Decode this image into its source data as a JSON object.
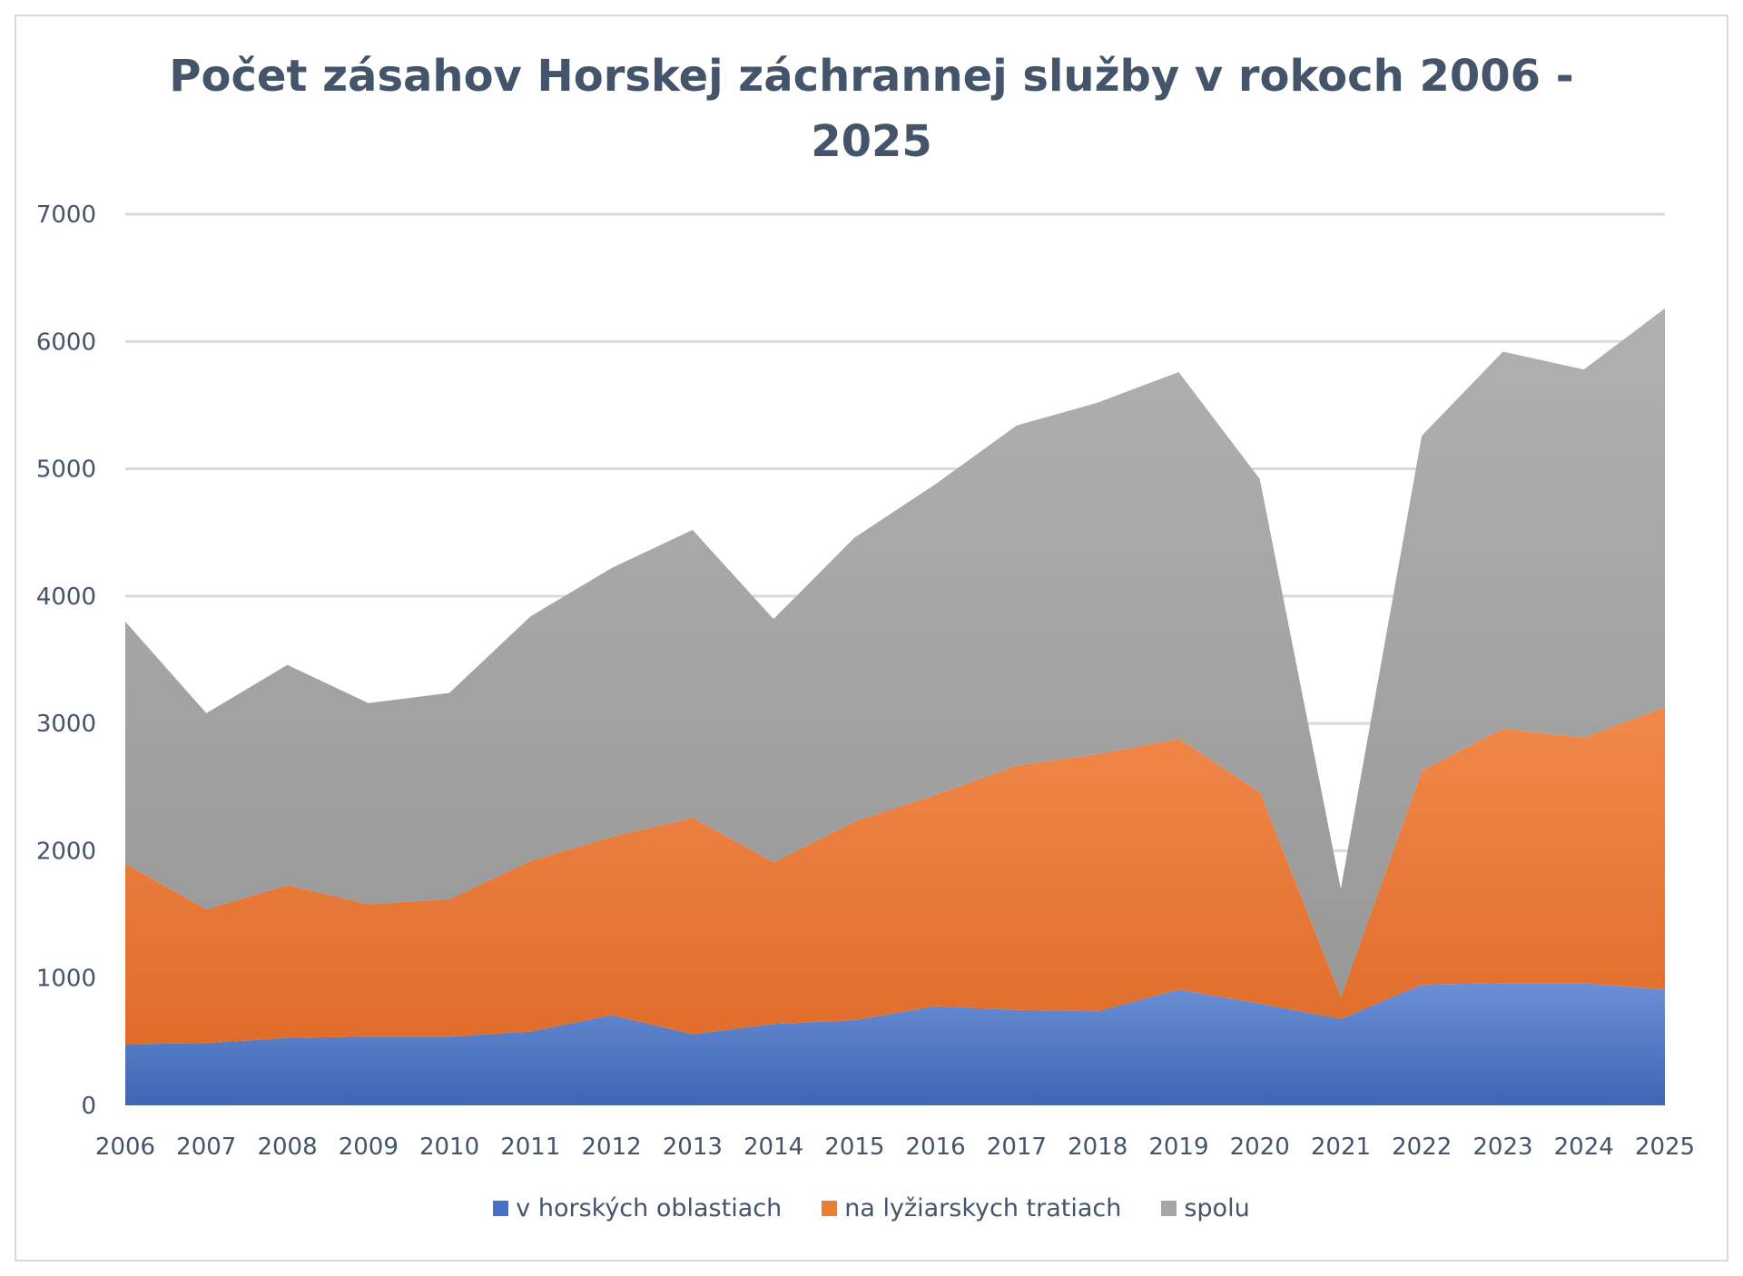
{
  "chart_data": {
    "type": "area",
    "stacked": true,
    "title": "Počet zásahov Horskej záchrannej služby v rokoch 2006 - 2025",
    "title_lines": [
      "Počet zásahov Horskej záchrannej služby v rokoch 2006 -",
      "2025"
    ],
    "categories": [
      "2006",
      "2007",
      "2008",
      "2009",
      "2010",
      "2011",
      "2012",
      "2013",
      "2014",
      "2015",
      "2016",
      "2017",
      "2018",
      "2019",
      "2020",
      "2021",
      "2022",
      "2023",
      "2024",
      "2025"
    ],
    "series": [
      {
        "name": "v horských oblastiach",
        "color": "#4472c4",
        "values": [
          480,
          490,
          530,
          540,
          540,
          580,
          710,
          560,
          640,
          670,
          780,
          750,
          740,
          910,
          800,
          680,
          950,
          960,
          960,
          910
        ]
      },
      {
        "name": "na lyžiarskych tratiach",
        "color": "#ed7d31",
        "values": [
          1420,
          1050,
          1200,
          1040,
          1080,
          1340,
          1400,
          1700,
          1270,
          1560,
          1660,
          1920,
          2020,
          1970,
          1660,
          170,
          1680,
          2000,
          1930,
          2220
        ]
      },
      {
        "name": "spolu",
        "color": "#a5a5a5",
        "values": [
          1900,
          1540,
          1730,
          1580,
          1620,
          1920,
          2110,
          2260,
          1910,
          2230,
          2440,
          2670,
          2760,
          2880,
          2460,
          850,
          2630,
          2960,
          2890,
          3130
        ]
      }
    ],
    "ylim": [
      0,
      7000
    ],
    "yticks": [
      "0",
      "1000",
      "2000",
      "3000",
      "4000",
      "5000",
      "6000",
      "7000"
    ],
    "xlabel": "",
    "ylabel": "",
    "grid": true,
    "legend_position": "bottom",
    "grid_color": "#d9d9d9"
  }
}
